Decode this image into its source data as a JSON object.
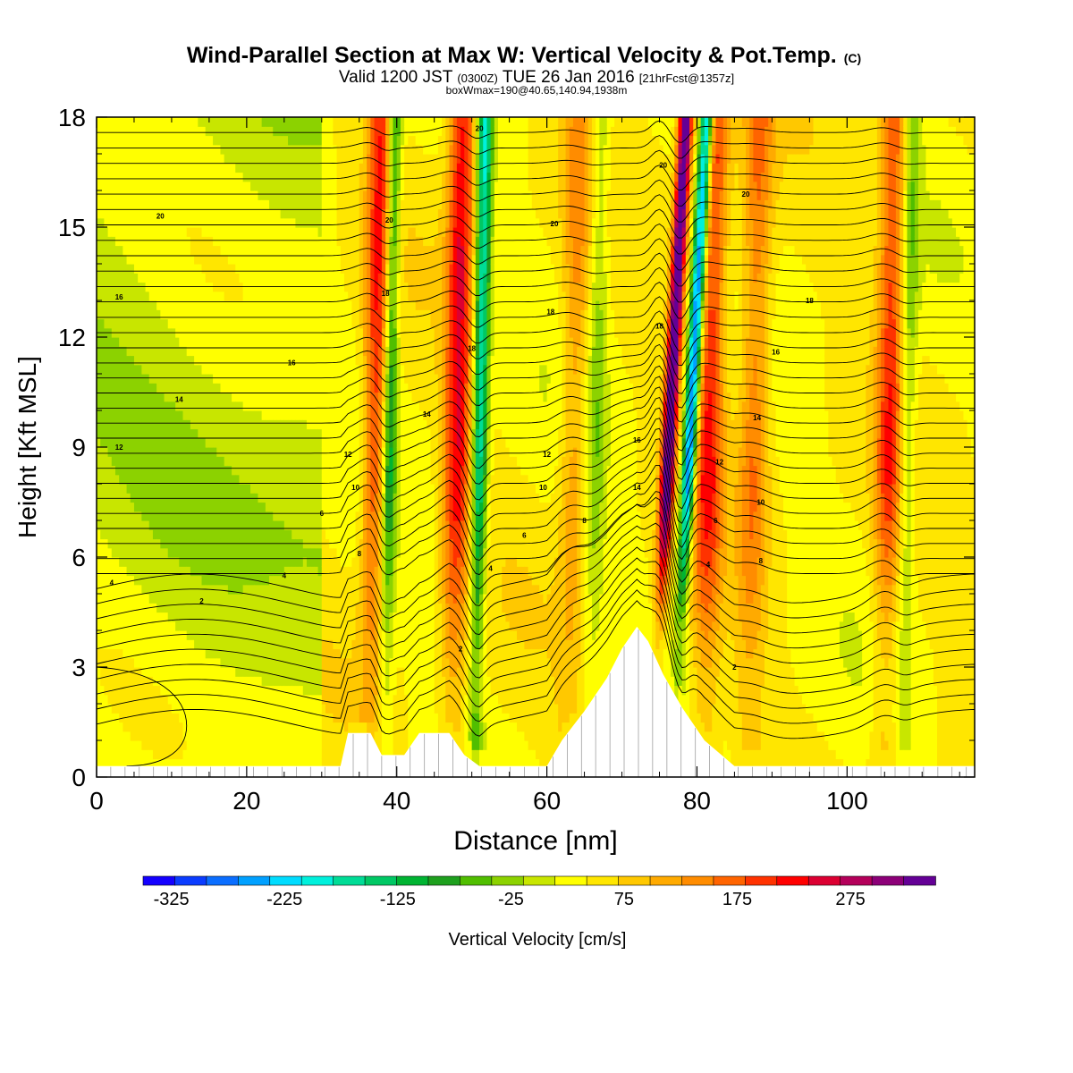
{
  "chart_data": {
    "type": "heatmap",
    "title": "Wind-Parallel Section at Max W: Vertical Velocity & Pot.Temp.",
    "title_mark": "(C)",
    "subtitle": {
      "prefix": "Valid 1200 JST",
      "utc": "(0300Z)",
      "date": "TUE 26 Jan 2016",
      "fcst": "[21hrFcst@1357z]"
    },
    "subtitle2": "boxWmax=190@40.65,140.94,1938m",
    "xlabel": "Distance [nm]",
    "ylabel": "Height [Kft MSL]",
    "xlim": [
      0,
      117
    ],
    "ylim": [
      0,
      18
    ],
    "xticks": [
      0,
      20,
      40,
      60,
      80,
      100
    ],
    "yticks": [
      0,
      3,
      6,
      9,
      12,
      15,
      18
    ],
    "colorbar": {
      "label": "Vertical Velocity [cm/s]",
      "min": -350,
      "max": 350,
      "step": 25,
      "tick_values": [
        -325,
        -225,
        -125,
        -25,
        75,
        175,
        275
      ],
      "colors": [
        "#1400ff",
        "#0a3cff",
        "#0a6eff",
        "#00a0ff",
        "#00dcff",
        "#00f0dc",
        "#00dc96",
        "#00c864",
        "#00b432",
        "#1ea01e",
        "#50be00",
        "#8cd200",
        "#c8e600",
        "#ffff00",
        "#ffe600",
        "#ffc800",
        "#ffaa00",
        "#ff8c00",
        "#ff6400",
        "#ff3200",
        "#ff0000",
        "#dc0032",
        "#b4005a",
        "#8c0078",
        "#640096"
      ]
    },
    "terrain": [
      {
        "x": 0,
        "z": 0.3
      },
      {
        "x": 32.5,
        "z": 0.3
      },
      {
        "x": 33.5,
        "z": 1.2
      },
      {
        "x": 36.5,
        "z": 1.2
      },
      {
        "x": 38,
        "z": 0.6
      },
      {
        "x": 41,
        "z": 0.6
      },
      {
        "x": 43,
        "z": 1.2
      },
      {
        "x": 47,
        "z": 1.2
      },
      {
        "x": 49,
        "z": 0.6
      },
      {
        "x": 51,
        "z": 0.3
      },
      {
        "x": 60,
        "z": 0.3
      },
      {
        "x": 62,
        "z": 1.0
      },
      {
        "x": 65,
        "z": 1.8
      },
      {
        "x": 68,
        "z": 2.7
      },
      {
        "x": 70,
        "z": 3.5
      },
      {
        "x": 72,
        "z": 4.1
      },
      {
        "x": 73.5,
        "z": 3.7
      },
      {
        "x": 75.5,
        "z": 2.8
      },
      {
        "x": 78,
        "z": 1.9
      },
      {
        "x": 81,
        "z": 1.0
      },
      {
        "x": 85,
        "z": 0.3
      },
      {
        "x": 117,
        "z": 0.3
      }
    ],
    "updraft_bands": [
      {
        "x": 36.5,
        "amplitude": 140,
        "width": 1.6
      },
      {
        "x": 38.5,
        "amplitude": -130,
        "width": 0.9
      },
      {
        "x": 47.5,
        "amplitude": 170,
        "width": 1.8
      },
      {
        "x": 50.5,
        "amplitude": -200,
        "width": 1.0
      },
      {
        "x": 63,
        "amplitude": 75,
        "width": 1.8
      },
      {
        "x": 66,
        "amplitude": -60,
        "width": 1.3
      },
      {
        "x": 75,
        "amplitude": 300,
        "width": 0.9
      },
      {
        "x": 77.8,
        "amplitude": -320,
        "width": 0.9
      },
      {
        "x": 81,
        "amplitude": 150,
        "width": 2.0
      },
      {
        "x": 87,
        "amplitude": 100,
        "width": 2.0
      },
      {
        "x": 105,
        "amplitude": 130,
        "width": 1.8
      },
      {
        "x": 107.5,
        "amplitude": -70,
        "width": 1.1
      }
    ],
    "pot_temp_contours": {
      "spacing_kft": 0.42,
      "labels": [
        {
          "text": "2",
          "x": 14,
          "z": 4.8
        },
        {
          "text": "4",
          "x": 2,
          "z": 5.3
        },
        {
          "text": "4",
          "x": 25,
          "z": 5.5
        },
        {
          "text": "6",
          "x": 30,
          "z": 7.2
        },
        {
          "text": "8",
          "x": 35,
          "z": 6.1
        },
        {
          "text": "10",
          "x": 34.5,
          "z": 7.9
        },
        {
          "text": "12",
          "x": 3,
          "z": 9.0
        },
        {
          "text": "12",
          "x": 33.5,
          "z": 8.8
        },
        {
          "text": "14",
          "x": 11,
          "z": 10.3
        },
        {
          "text": "16",
          "x": 26,
          "z": 11.3
        },
        {
          "text": "16",
          "x": 3,
          "z": 13.1
        },
        {
          "text": "18",
          "x": 38.5,
          "z": 13.2
        },
        {
          "text": "20",
          "x": 8.5,
          "z": 15.3
        },
        {
          "text": "20",
          "x": 39,
          "z": 15.2
        },
        {
          "text": "20",
          "x": 51,
          "z": 17.7
        },
        {
          "text": "14",
          "x": 44,
          "z": 9.9
        },
        {
          "text": "18",
          "x": 50,
          "z": 11.7
        },
        {
          "text": "4",
          "x": 52.5,
          "z": 5.7
        },
        {
          "text": "6",
          "x": 57,
          "z": 6.6
        },
        {
          "text": "2",
          "x": 48.5,
          "z": 3.5
        },
        {
          "text": "10",
          "x": 59.5,
          "z": 7.9
        },
        {
          "text": "12",
          "x": 60,
          "z": 8.8
        },
        {
          "text": "18",
          "x": 60.5,
          "z": 12.7
        },
        {
          "text": "20",
          "x": 61,
          "z": 15.1
        },
        {
          "text": "8",
          "x": 65,
          "z": 7.0
        },
        {
          "text": "14",
          "x": 72,
          "z": 7.9
        },
        {
          "text": "16",
          "x": 72,
          "z": 9.2
        },
        {
          "text": "18",
          "x": 75,
          "z": 12.3
        },
        {
          "text": "20",
          "x": 75.5,
          "z": 16.7
        },
        {
          "text": "4",
          "x": 81.5,
          "z": 5.8
        },
        {
          "text": "6",
          "x": 82.5,
          "z": 7.0
        },
        {
          "text": "2",
          "x": 85,
          "z": 3.0
        },
        {
          "text": "12",
          "x": 83,
          "z": 8.6
        },
        {
          "text": "20",
          "x": 86.5,
          "z": 15.9
        },
        {
          "text": "8",
          "x": 88.5,
          "z": 5.9
        },
        {
          "text": "10",
          "x": 88.5,
          "z": 7.5
        },
        {
          "text": "14",
          "x": 88,
          "z": 9.8
        },
        {
          "text": "16",
          "x": 90.5,
          "z": 11.6
        },
        {
          "text": "18",
          "x": 95,
          "z": 13.0
        }
      ]
    }
  }
}
